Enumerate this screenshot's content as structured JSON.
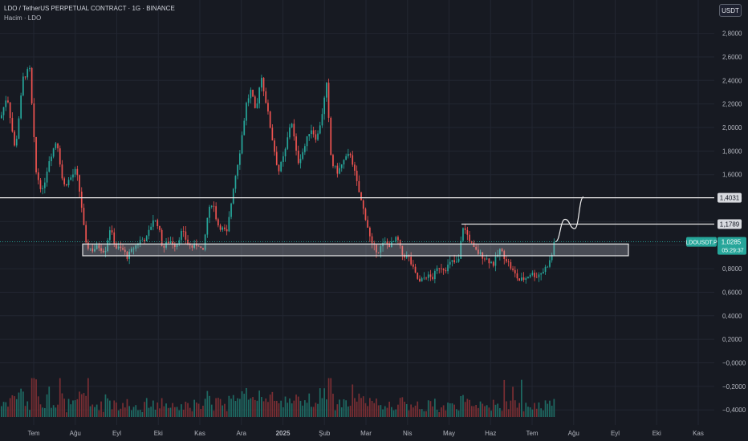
{
  "header": {
    "title": "LDO / TetherUS PERPETUAL CONTRACT · 1G · BINANCE",
    "volume_label": "Hacim · LDO"
  },
  "currency_button": "USDT",
  "colors": {
    "background": "#171a22",
    "up": "#26a69a",
    "down": "#ef5350",
    "vol_up": "#1e6a63",
    "vol_down": "#7a2e33",
    "grid": "#222631",
    "level_line": "#e6e6e6",
    "label_bg": "#d8dadf",
    "label_text": "#131722",
    "price_tag": "#26a69a"
  },
  "chart_data": {
    "type": "candlestick",
    "symbol": "LDOUSDT.P",
    "y_axis_labels": [
      "2,8000",
      "2,6000",
      "2,4000",
      "2,2000",
      "2,0000",
      "1,8000",
      "1,6000",
      "1,4000",
      "1,2000",
      "1,0000",
      "0,8000",
      "0,6000",
      "0,4000",
      "0,2000",
      "−0,0000",
      "−0,2000",
      "−0,4000"
    ],
    "ylim": [
      -0.46,
      2.92
    ],
    "x_axis_labels": [
      "Tem",
      "Ağu",
      "Eyl",
      "Eki",
      "Kas",
      "Ara",
      "2025",
      "Şub",
      "Mar",
      "Nis",
      "May",
      "Haz",
      "Tem",
      "Ağu",
      "Eyl",
      "Eki",
      "Kas"
    ],
    "price_path": [
      [
        0,
        2.08
      ],
      [
        8,
        2.28
      ],
      [
        18,
        1.8
      ],
      [
        28,
        2.42
      ],
      [
        36,
        2.5
      ],
      [
        44,
        1.62
      ],
      [
        52,
        1.45
      ],
      [
        60,
        1.72
      ],
      [
        70,
        1.9
      ],
      [
        78,
        1.5
      ],
      [
        86,
        1.56
      ],
      [
        94,
        1.64
      ],
      [
        100,
        1.38
      ],
      [
        106,
        1.0
      ],
      [
        114,
        0.96
      ],
      [
        122,
        0.99
      ],
      [
        130,
        0.95
      ],
      [
        136,
        1.14
      ],
      [
        144,
        0.98
      ],
      [
        152,
        0.96
      ],
      [
        158,
        0.9
      ],
      [
        166,
        0.98
      ],
      [
        174,
        1.04
      ],
      [
        182,
        1.06
      ],
      [
        190,
        1.22
      ],
      [
        196,
        1.18
      ],
      [
        202,
        0.97
      ],
      [
        210,
        1.04
      ],
      [
        218,
        1.0
      ],
      [
        226,
        1.12
      ],
      [
        234,
        1.0
      ],
      [
        240,
        0.98
      ],
      [
        246,
        1.02
      ],
      [
        252,
        0.93
      ],
      [
        258,
        1.26
      ],
      [
        264,
        1.38
      ],
      [
        270,
        1.18
      ],
      [
        276,
        1.14
      ],
      [
        282,
        1.1
      ],
      [
        290,
        1.5
      ],
      [
        298,
        1.8
      ],
      [
        306,
        2.2
      ],
      [
        312,
        2.32
      ],
      [
        318,
        2.1
      ],
      [
        324,
        2.46
      ],
      [
        330,
        2.24
      ],
      [
        338,
        1.92
      ],
      [
        346,
        1.62
      ],
      [
        354,
        1.78
      ],
      [
        362,
        2.08
      ],
      [
        370,
        1.7
      ],
      [
        378,
        1.82
      ],
      [
        386,
        2.0
      ],
      [
        394,
        1.9
      ],
      [
        400,
        2.1
      ],
      [
        406,
        2.36
      ],
      [
        412,
        1.7
      ],
      [
        420,
        1.62
      ],
      [
        428,
        1.72
      ],
      [
        436,
        1.78
      ],
      [
        444,
        1.52
      ],
      [
        450,
        1.35
      ],
      [
        456,
        1.2
      ],
      [
        462,
        1.0
      ],
      [
        470,
        0.95
      ],
      [
        478,
        1.02
      ],
      [
        486,
        1.0
      ],
      [
        494,
        1.06
      ],
      [
        500,
        0.92
      ],
      [
        508,
        0.9
      ],
      [
        516,
        0.76
      ],
      [
        522,
        0.68
      ],
      [
        530,
        0.74
      ],
      [
        538,
        0.72
      ],
      [
        546,
        0.82
      ],
      [
        554,
        0.8
      ],
      [
        562,
        0.86
      ],
      [
        570,
        0.84
      ],
      [
        576,
        1.16
      ],
      [
        582,
        1.08
      ],
      [
        590,
        0.96
      ],
      [
        598,
        0.92
      ],
      [
        606,
        0.88
      ],
      [
        614,
        0.84
      ],
      [
        622,
        0.96
      ],
      [
        630,
        0.88
      ],
      [
        638,
        0.78
      ],
      [
        646,
        0.7
      ],
      [
        654,
        0.72
      ],
      [
        660,
        0.76
      ],
      [
        668,
        0.74
      ],
      [
        676,
        0.78
      ],
      [
        684,
        0.86
      ],
      [
        692,
        1.0285
      ]
    ],
    "volume": {
      "base_axis_value": -0.46,
      "peak_value": 0.33
    },
    "levels": [
      {
        "value": "1,4031",
        "price": 1.4031,
        "x_start": 0
      },
      {
        "value": "1,1789",
        "price": 1.1789,
        "x_start": 575
      }
    ],
    "zone": {
      "top": 1.01,
      "bottom": 0.91,
      "x_start": 103,
      "x_end": 783
    },
    "projection": [
      [
        692,
        1.0285
      ],
      [
        704,
        1.22
      ],
      [
        716,
        1.14
      ],
      [
        727,
        1.41
      ]
    ],
    "last_price": {
      "symbol": "LDOUSDT.P",
      "value": "1,0285",
      "countdown": "05:29:37",
      "price": 1.0285
    }
  }
}
